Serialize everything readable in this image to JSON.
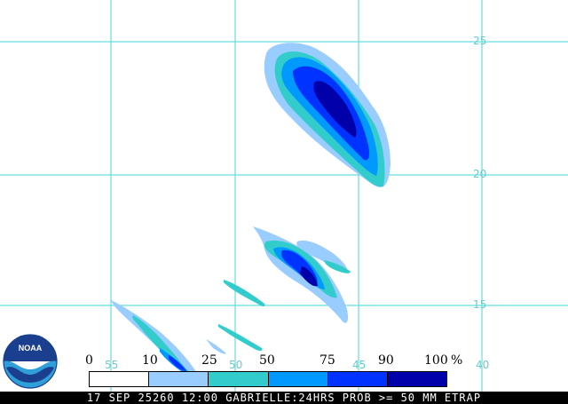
{
  "map": {
    "latitudes": [
      "25",
      "20",
      "15"
    ],
    "longitudes": [
      "55",
      "50",
      "45",
      "40"
    ],
    "grid_color": "#66dddd"
  },
  "legend": {
    "ticks": [
      "0",
      "10",
      "25",
      "50",
      "75",
      "90",
      "100",
      "%"
    ],
    "colors": [
      "#ffffff",
      "#99ccff",
      "#33cccc",
      "#0099ff",
      "#0033ff",
      "#0000aa"
    ]
  },
  "logo": {
    "text": "NOAA",
    "icon": "noaa-logo"
  },
  "footer": {
    "text": "17 SEP 25260 12:00 GABRIELLE:24HRS PROB >= 50 MM ETRAP"
  }
}
